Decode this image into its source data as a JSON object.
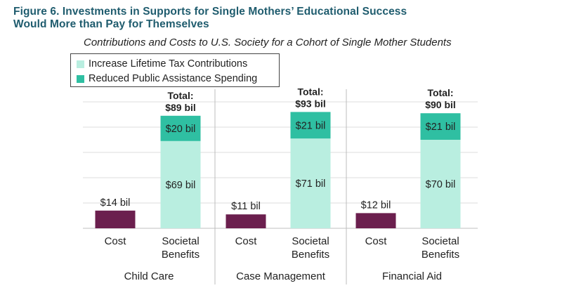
{
  "figure_title_line1": "Figure 6. Investments in Supports for Single Mothers’ Educational Success",
  "figure_title_line2": "Would More than Pay for Themselves",
  "colors": {
    "cost": "#6b1f4e",
    "tax": "#b9eee0",
    "assistance": "#2fbfa2",
    "grid": "#dcdcdc",
    "divider": "#bdbdbd",
    "text": "#222222"
  },
  "chart_data": {
    "type": "bar",
    "stacked": true,
    "title": "Figure 6. Investments in Supports for Single Mothers’ Educational Success Would More than Pay for Themselves",
    "subtitle": "Contributions and Costs to U.S. Society for a Cohort of Single Mother Students",
    "legend": [
      {
        "key": "tax",
        "label": "Increase Lifetime Tax Contributions"
      },
      {
        "key": "assistance",
        "label": "Reduced Public Assistance Spending"
      }
    ],
    "legend_position": "top-left",
    "ylim": [
      0,
      110
    ],
    "grid": true,
    "groups": [
      {
        "name": "Child Care",
        "cost": {
          "category": "Cost",
          "value": 14,
          "label": "$14 bil"
        },
        "benefits": {
          "category": [
            "Societal",
            "Benefits"
          ],
          "tax": 69,
          "tax_label": "$69 bil",
          "assistance": 20,
          "assistance_label": "$20 bil",
          "total_label": [
            "Total:",
            "$89 bil"
          ]
        }
      },
      {
        "name": "Case Management",
        "cost": {
          "category": "Cost",
          "value": 11,
          "label": "$11 bil"
        },
        "benefits": {
          "category": [
            "Societal",
            "Benefits"
          ],
          "tax": 71,
          "tax_label": "$71 bil",
          "assistance": 21,
          "assistance_label": "$21 bil",
          "total_label": [
            "Total:",
            "$93 bil"
          ]
        }
      },
      {
        "name": "Financial Aid",
        "cost": {
          "category": "Cost",
          "value": 12,
          "label": "$12 bil"
        },
        "benefits": {
          "category": [
            "Societal",
            "Benefits"
          ],
          "tax": 70,
          "tax_label": "$70 bil",
          "assistance": 21,
          "assistance_label": "$21 bil",
          "total_label": [
            "Total:",
            "$90 bil"
          ]
        }
      }
    ]
  }
}
